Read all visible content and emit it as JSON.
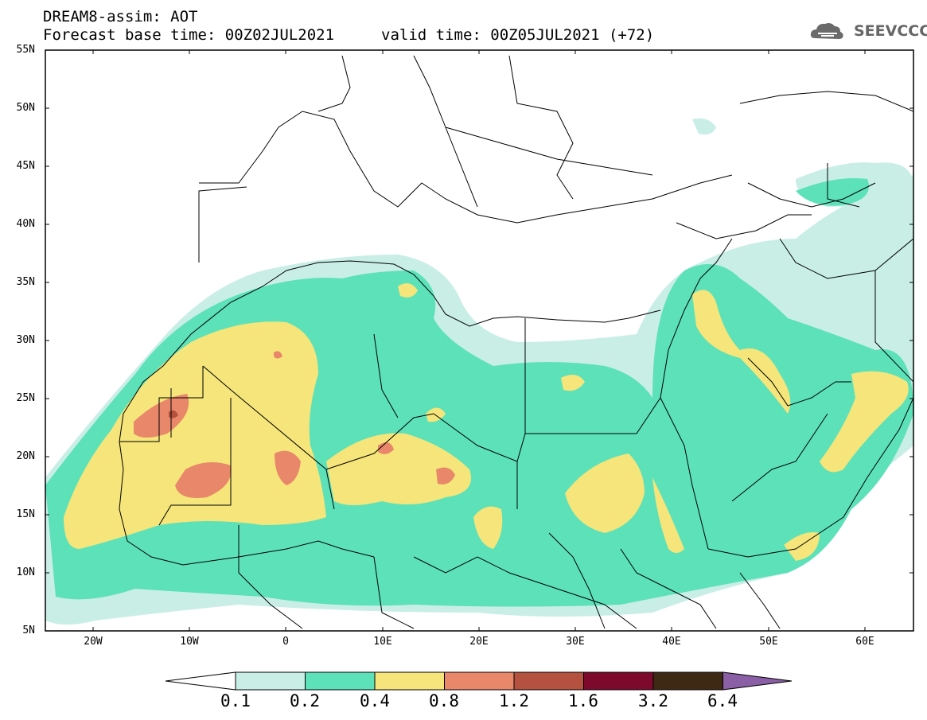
{
  "header": {
    "title": "DREAM8-assim: AOT",
    "base_time": "Forecast base time: 00Z02JUL2021",
    "valid_time": "valid time: 00Z05JUL2021 (+72)"
  },
  "logo": {
    "text": "SEEVCCC",
    "icon": "cloud-icon"
  },
  "map": {
    "lat_labels": [
      "55N",
      "50N",
      "45N",
      "40N",
      "35N",
      "30N",
      "25N",
      "20N",
      "15N",
      "10N",
      "5N"
    ],
    "lon_labels": [
      "20W",
      "10W",
      "0",
      "10E",
      "20E",
      "30E",
      "40E",
      "50E",
      "60E"
    ],
    "lat_range": [
      5,
      55
    ],
    "lon_range": [
      -25,
      65
    ]
  },
  "colorbar": {
    "labels": [
      "0.1",
      "0.2",
      "0.4",
      "0.8",
      "1.2",
      "1.6",
      "3.2",
      "6.4"
    ],
    "colors": [
      "#ffffff",
      "#c8eee6",
      "#5ce1b9",
      "#f5e57a",
      "#e8876a",
      "#b5523f",
      "#7d0a2d",
      "#3e2914",
      "#8a5fa5"
    ]
  }
}
